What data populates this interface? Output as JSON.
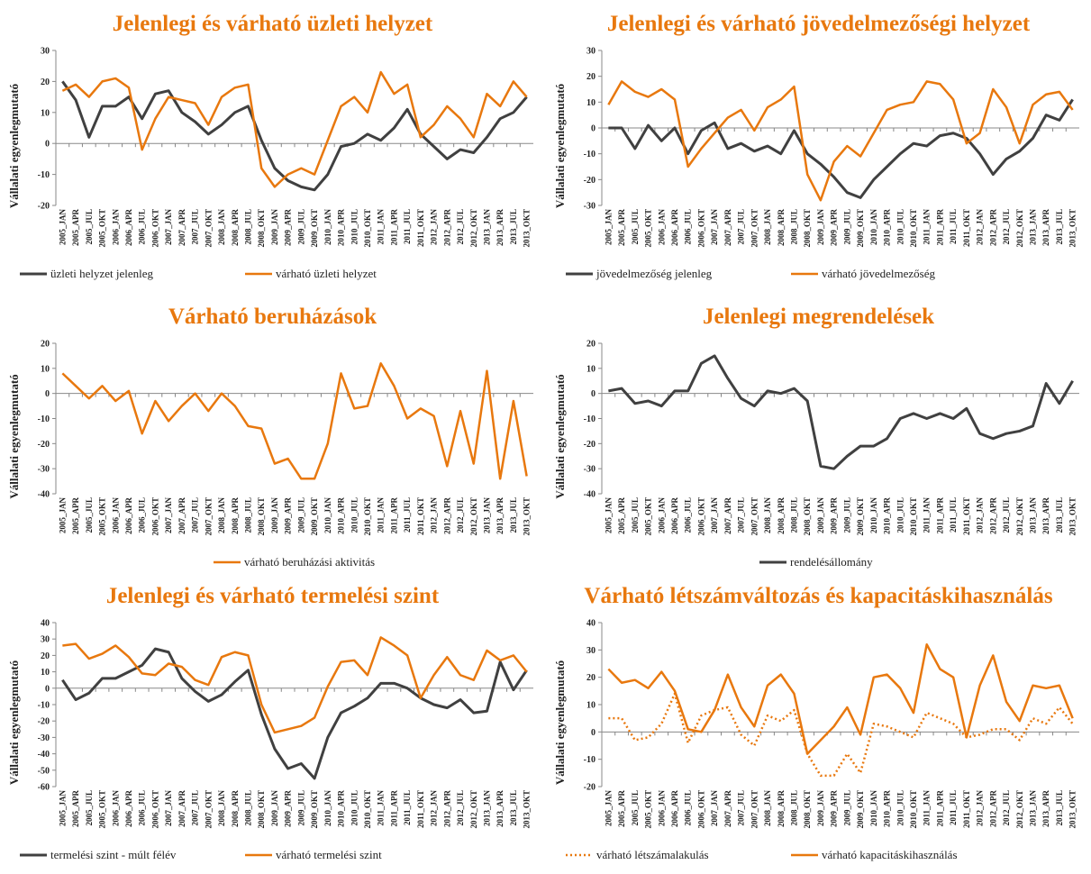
{
  "chart_data": [
    {
      "type": "line",
      "title": "Jelenlegi és várható üzleti helyzet",
      "ylabel": "Vállalati egyenlegmutató",
      "categories": [
        "2005_JAN",
        "2005_APR",
        "2005_JUL",
        "2005_OKT",
        "2006_JAN",
        "2006_APR",
        "2006_JUL",
        "2006_OKT",
        "2007_JAN",
        "2007_APR",
        "2007_JUL",
        "2007_OKT",
        "2008_JAN",
        "2008_APR",
        "2008_JUL",
        "2008_OKT",
        "2009_JAN",
        "2009_APR",
        "2009_JUL",
        "2009_OKT",
        "2010_JAN",
        "2010_APR",
        "2010_JUL",
        "2010_OKT",
        "2011_JAN",
        "2011_APR",
        "2011_JUL",
        "2011_OKT",
        "2012_JAN",
        "2012_APR",
        "2012_JUL",
        "2012_OKT",
        "2013_JAN",
        "2013_APR",
        "2013_JUL",
        "2013_OKT"
      ],
      "ylim": [
        -20,
        30
      ],
      "yticks": [
        -20,
        -10,
        0,
        10,
        20,
        30
      ],
      "series": [
        {
          "name": "üzleti helyzet jelenleg",
          "color": "#404040",
          "values": [
            20,
            14,
            2,
            12,
            12,
            15,
            8,
            16,
            17,
            10,
            7,
            3,
            6,
            10,
            12,
            1,
            -8,
            -12,
            -14,
            -15,
            -10,
            -1,
            0,
            3,
            1,
            5,
            11,
            3,
            -1,
            -5,
            -2,
            -3,
            2,
            8,
            10,
            15
          ]
        },
        {
          "name": "várható üzleti helyzet",
          "color": "#e8780e",
          "values": [
            17,
            19,
            15,
            20,
            21,
            18,
            -2,
            8,
            15,
            14,
            13,
            6,
            15,
            18,
            19,
            -8,
            -14,
            -10,
            -8,
            -10,
            1,
            12,
            15,
            10,
            23,
            16,
            19,
            2,
            6,
            12,
            8,
            2,
            16,
            12,
            20,
            15
          ]
        }
      ]
    },
    {
      "type": "line",
      "title": "Jelenlegi és várható jövedelmezőségi helyzet",
      "ylabel": "Vállalati egyenlegmutató",
      "categories": [
        "2005_JAN",
        "2005_APR",
        "2005_JUL",
        "2005_OKT",
        "2006_JAN",
        "2006_APR",
        "2006_JUL",
        "2006_OKT",
        "2007_JAN",
        "2007_APR",
        "2007_JUL",
        "2007_OKT",
        "2008_JAN",
        "2008_APR",
        "2008_JUL",
        "2008_OKT",
        "2009_JAN",
        "2009_APR",
        "2009_JUL",
        "2009_OKT",
        "2010_JAN",
        "2010_APR",
        "2010_JUL",
        "2010_OKT",
        "2011_JAN",
        "2011_APR",
        "2011_JUL",
        "2011_OKT",
        "2012_JAN",
        "2012_APR",
        "2012_JUL",
        "2012_OKT",
        "2013_JAN",
        "2013_APR",
        "2013_JUL",
        "2013_OKT"
      ],
      "ylim": [
        -30,
        30
      ],
      "yticks": [
        -30,
        -20,
        -10,
        0,
        10,
        20,
        30
      ],
      "series": [
        {
          "name": "jövedelmezőség jelenleg",
          "color": "#404040",
          "values": [
            0,
            0,
            -8,
            1,
            -5,
            0,
            -10,
            -1,
            2,
            -8,
            -6,
            -9,
            -7,
            -10,
            -1,
            -10,
            -14,
            -19,
            -25,
            -27,
            -20,
            -15,
            -10,
            -6,
            -7,
            -3,
            -2,
            -4,
            -10,
            -18,
            -12,
            -9,
            -4,
            5,
            3,
            11
          ]
        },
        {
          "name": "várható jövedelmezőség",
          "color": "#e8780e",
          "values": [
            9,
            18,
            14,
            12,
            15,
            11,
            -15,
            -8,
            -2,
            4,
            7,
            -1,
            8,
            11,
            16,
            -18,
            -28,
            -13,
            -7,
            -11,
            -2,
            7,
            9,
            10,
            18,
            17,
            11,
            -6,
            -2,
            15,
            8,
            -6,
            9,
            13,
            14,
            7
          ]
        }
      ]
    },
    {
      "type": "line",
      "title": "Várható beruházások",
      "ylabel": "Vállalati egyenlegmutató",
      "categories": [
        "2005_JAN",
        "2005_APR",
        "2005_JUL",
        "2005_OKT",
        "2006_JAN",
        "2006_APR",
        "2006_JUL",
        "2006_OKT",
        "2007_JAN",
        "2007_APR",
        "2007_JUL",
        "2007_OKT",
        "2008_JAN",
        "2008_APR",
        "2008_JUL",
        "2008_OKT",
        "2009_JAN",
        "2009_APR",
        "2009_JUL",
        "2009_OKT",
        "2010_JAN",
        "2010_APR",
        "2010_JUL",
        "2010_OKT",
        "2011_JAN",
        "2011_APR",
        "2011_JUL",
        "2011_OKT",
        "2012_JAN",
        "2012_APR",
        "2012_JUL",
        "2012_OKT",
        "2013_JAN",
        "2013_APR",
        "2013_JUL",
        "2013_OKT"
      ],
      "ylim": [
        -40,
        20
      ],
      "yticks": [
        -40,
        -30,
        -20,
        -10,
        0,
        10,
        20
      ],
      "series": [
        {
          "name": "várható beruházási aktivitás",
          "color": "#e8780e",
          "values": [
            8,
            3,
            -2,
            3,
            -3,
            1,
            -16,
            -3,
            -11,
            -5,
            0,
            -7,
            0,
            -5,
            -13,
            -14,
            -28,
            -26,
            -34,
            -34,
            -20,
            8,
            -6,
            -5,
            12,
            3,
            -10,
            -6,
            -9,
            -29,
            -7,
            -28,
            9,
            -34,
            -3,
            -33
          ]
        }
      ]
    },
    {
      "type": "line",
      "title": "Jelenlegi megrendelések",
      "ylabel": "Vállalati egyenlegmutató",
      "categories": [
        "2005_JAN",
        "2005_APR",
        "2005_JUL",
        "2005_OKT",
        "2006_JAN",
        "2006_APR",
        "2006_JUL",
        "2006_OKT",
        "2007_JAN",
        "2007_APR",
        "2007_JUL",
        "2007_OKT",
        "2008_JAN",
        "2008_APR",
        "2008_JUL",
        "2008_OKT",
        "2009_JAN",
        "2009_APR",
        "2009_JUL",
        "2009_OKT",
        "2010_JAN",
        "2010_APR",
        "2010_JUL",
        "2010_OKT",
        "2011_JAN",
        "2011_APR",
        "2011_JUL",
        "2011_OKT",
        "2012_JAN",
        "2012_APR",
        "2012_JUL",
        "2012_OKT",
        "2013_JAN",
        "2013_APR",
        "2013_JUL",
        "2013_OKT"
      ],
      "ylim": [
        -40,
        20
      ],
      "yticks": [
        -40,
        -30,
        -20,
        -10,
        0,
        10,
        20
      ],
      "series": [
        {
          "name": "rendelésállomány",
          "color": "#404040",
          "values": [
            1,
            2,
            -4,
            -3,
            -5,
            1,
            1,
            12,
            15,
            6,
            -2,
            -5,
            1,
            0,
            2,
            -3,
            -29,
            -30,
            -25,
            -21,
            -21,
            -18,
            -10,
            -8,
            -10,
            -8,
            -10,
            -6,
            -16,
            -18,
            -16,
            -15,
            -13,
            4,
            -4,
            5
          ]
        }
      ]
    },
    {
      "type": "line",
      "title": "Jelenlegi és várható termelési szint",
      "ylabel": "Vállalati egyenlegmutató",
      "categories": [
        "2005_JAN",
        "2005_APR",
        "2005_JUL",
        "2005_OKT",
        "2006_JAN",
        "2006_APR",
        "2006_JUL",
        "2006_OKT",
        "2007_JAN",
        "2007_APR",
        "2007_JUL",
        "2007_OKT",
        "2008_JAN",
        "2008_APR",
        "2008_JUL",
        "2008_OKT",
        "2009_JAN",
        "2009_APR",
        "2009_JUL",
        "2009_OKT",
        "2010_JAN",
        "2010_APR",
        "2010_JUL",
        "2010_OKT",
        "2011_JAN",
        "2011_APR",
        "2011_JUL",
        "2011_OKT",
        "2012_JAN",
        "2012_APR",
        "2012_JUL",
        "2012_OKT",
        "2013_JAN",
        "2013_APR",
        "2013_JUL",
        "2013_OKT"
      ],
      "ylim": [
        -60,
        40
      ],
      "yticks": [
        -60,
        -50,
        -40,
        -30,
        -20,
        -10,
        0,
        10,
        20,
        30,
        40
      ],
      "series": [
        {
          "name": "termelési szint - múlt félév",
          "color": "#404040",
          "values": [
            5,
            -7,
            -3,
            6,
            6,
            10,
            14,
            24,
            22,
            6,
            -2,
            -8,
            -4,
            4,
            11,
            -16,
            -37,
            -49,
            -46,
            -55,
            -30,
            -15,
            -11,
            -6,
            3,
            3,
            0,
            -6,
            -10,
            -12,
            -7,
            -15,
            -14,
            16,
            -1,
            11
          ]
        },
        {
          "name": "várható termelési szint",
          "color": "#e8780e",
          "values": [
            26,
            27,
            18,
            21,
            26,
            19,
            9,
            8,
            15,
            13,
            5,
            2,
            19,
            22,
            20,
            -10,
            -27,
            -25,
            -23,
            -18,
            1,
            16,
            17,
            8,
            31,
            26,
            20,
            -6,
            8,
            19,
            8,
            5,
            23,
            17,
            20,
            10
          ]
        }
      ]
    },
    {
      "type": "line",
      "title": "Várható létszámváltozás és kapacitáskihasználás",
      "ylabel": "Vállalati egyenlegmutató",
      "categories": [
        "2005_JAN",
        "2005_APR",
        "2005_JUL",
        "2005_OKT",
        "2006_JAN",
        "2006_APR",
        "2006_JUL",
        "2006_OKT",
        "2007_JAN",
        "2007_APR",
        "2007_JUL",
        "2007_OKT",
        "2008_JAN",
        "2008_APR",
        "2008_JUL",
        "2008_OKT",
        "2009_JAN",
        "2009_APR",
        "2009_JUL",
        "2009_OKT",
        "2010_JAN",
        "2010_APR",
        "2010_JUL",
        "2010_OKT",
        "2011_JAN",
        "2011_APR",
        "2011_JUL",
        "2011_OKT",
        "2012_JAN",
        "2012_APR",
        "2012_JUL",
        "2012_OKT",
        "2013_JAN",
        "2013_APR",
        "2013_JUL",
        "2013_OKT"
      ],
      "ylim": [
        -20,
        40
      ],
      "yticks": [
        -20,
        -10,
        0,
        10,
        20,
        30,
        40
      ],
      "series": [
        {
          "name": "várható létszámalakulás",
          "color": "#e8780e",
          "line_style": "dotted",
          "values": [
            5,
            5,
            -3,
            -2,
            3,
            14,
            -4,
            6,
            8,
            9,
            -1,
            -5,
            6,
            4,
            8,
            -8,
            -16,
            -16,
            -8,
            -15,
            3,
            2,
            0,
            -2,
            7,
            5,
            3,
            -2,
            -1,
            1,
            1,
            -3,
            5,
            3,
            9,
            3
          ]
        },
        {
          "name": "várható kapacitáskihasználás",
          "color": "#e8780e",
          "values": [
            23,
            18,
            19,
            16,
            22,
            15,
            1,
            0,
            8,
            21,
            9,
            2,
            17,
            21,
            14,
            -8,
            -3,
            2,
            9,
            -1,
            20,
            21,
            16,
            7,
            32,
            23,
            20,
            -2,
            17,
            28,
            11,
            4,
            17,
            16,
            17,
            5
          ]
        }
      ]
    }
  ]
}
